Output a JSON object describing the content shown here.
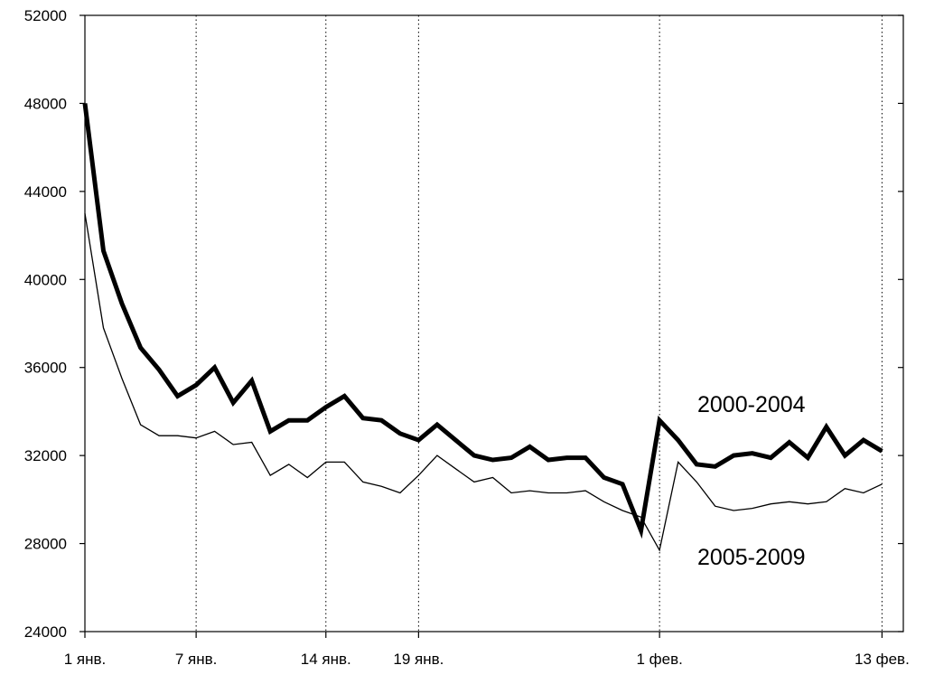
{
  "chart_data": {
    "type": "line",
    "title": "",
    "xlabel": "",
    "ylabel": "",
    "ylim": [
      24000,
      52000
    ],
    "xlim": [
      1,
      45.15
    ],
    "grid": "vertical-dotted",
    "y_ticks": [
      {
        "value": 24000,
        "label": "24000"
      },
      {
        "value": 28000,
        "label": "28000"
      },
      {
        "value": 32000,
        "label": "32000"
      },
      {
        "value": 36000,
        "label": "36000"
      },
      {
        "value": 40000,
        "label": "40000"
      },
      {
        "value": 44000,
        "label": "44000"
      },
      {
        "value": 48000,
        "label": "48000"
      },
      {
        "value": 52000,
        "label": "52000"
      }
    ],
    "x_ticks": [
      {
        "value": 1,
        "label": "1 янв."
      },
      {
        "value": 7,
        "label": "7 янв."
      },
      {
        "value": 14,
        "label": "14 янв."
      },
      {
        "value": 19,
        "label": "19 янв."
      },
      {
        "value": 32,
        "label": "1 фев."
      },
      {
        "value": 44,
        "label": "13 фев."
      }
    ],
    "series": [
      {
        "name": "2000-2004",
        "color": "#000000",
        "style": "bold",
        "x": [
          1,
          2,
          3,
          4,
          5,
          6,
          7,
          8,
          9,
          10,
          11,
          12,
          13,
          14,
          15,
          16,
          17,
          18,
          19,
          20,
          21,
          22,
          23,
          24,
          25,
          26,
          27,
          28,
          29,
          30,
          31,
          32,
          33,
          34,
          35,
          36,
          37,
          38,
          39,
          40,
          41,
          42,
          43,
          44
        ],
        "values": [
          48000,
          41300,
          38900,
          36900,
          35900,
          34700,
          35200,
          36000,
          34400,
          35400,
          33100,
          33600,
          33600,
          34200,
          34700,
          33700,
          33600,
          33000,
          32700,
          33400,
          32700,
          32000,
          31800,
          31900,
          32400,
          31800,
          31900,
          31900,
          31000,
          30700,
          28600,
          33600,
          32700,
          31600,
          31500,
          32000,
          32100,
          31900,
          32600,
          31900,
          33300,
          32000,
          32700,
          32200
        ]
      },
      {
        "name": "2005-2009",
        "color": "#000000",
        "style": "thin",
        "x": [
          1,
          2,
          3,
          4,
          5,
          6,
          7,
          8,
          9,
          10,
          11,
          12,
          13,
          14,
          15,
          16,
          17,
          18,
          19,
          20,
          21,
          22,
          23,
          24,
          25,
          26,
          27,
          28,
          29,
          30,
          31,
          32,
          33,
          34,
          35,
          36,
          37,
          38,
          39,
          40,
          41,
          42,
          43,
          44
        ],
        "values": [
          43000,
          37800,
          35500,
          33400,
          32900,
          32900,
          32800,
          33100,
          32500,
          32600,
          31100,
          31600,
          31000,
          31700,
          31700,
          30800,
          30600,
          30300,
          31100,
          32000,
          31400,
          30800,
          31000,
          30300,
          30400,
          30300,
          30300,
          30400,
          29900,
          29500,
          29200,
          27700,
          31700,
          30800,
          29700,
          29500,
          29600,
          29800,
          29900,
          29800,
          29900,
          30500,
          30300,
          30700
        ]
      }
    ],
    "annotations": [
      {
        "text": "2000-2004",
        "series": "2000-2004"
      },
      {
        "text": "2005-2009",
        "series": "2005-2009"
      }
    ]
  }
}
